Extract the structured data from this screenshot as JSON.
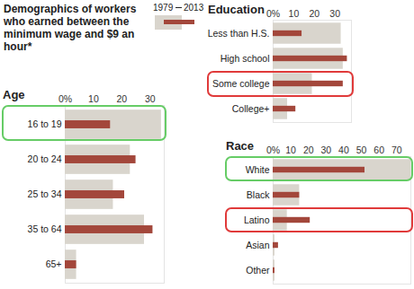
{
  "title": "Demographics of workers who earned between the minimum wage and $9 an hour*",
  "chart_data": [
    {
      "type": "bar",
      "orientation": "horizontal",
      "title": "Age",
      "categories": [
        "16 to 19",
        "20 to 24",
        "25 to 34",
        "35 to 64",
        "65+"
      ],
      "series": [
        {
          "name": "1979",
          "color": "#d9d5cd",
          "values": [
            34,
            23,
            17,
            28,
            4
          ]
        },
        {
          "name": "2013",
          "color": "#a3473b",
          "values": [
            16,
            25,
            21,
            31,
            4
          ]
        }
      ],
      "xlim": [
        0,
        35
      ],
      "xticks": [
        {
          "value": 0,
          "label": "0%"
        },
        10,
        20,
        30
      ]
    },
    {
      "type": "bar",
      "orientation": "horizontal",
      "title": "Education",
      "categories": [
        "Less than H.S.",
        "High school",
        "Some college",
        "College+"
      ],
      "series": [
        {
          "name": "1979",
          "color": "#d9d5cd",
          "values": [
            33,
            34,
            19,
            7
          ]
        },
        {
          "name": "2013",
          "color": "#a3473b",
          "values": [
            14,
            36,
            34,
            11
          ]
        }
      ],
      "xlim": [
        0,
        38
      ],
      "xticks": [
        {
          "value": 0,
          "label": "0%"
        },
        10,
        20,
        30
      ]
    },
    {
      "type": "bar",
      "orientation": "horizontal",
      "title": "Race",
      "categories": [
        "White",
        "Black",
        "Latino",
        "Asian",
        "Other"
      ],
      "series": [
        {
          "name": "1979",
          "color": "#d9d5cd",
          "values": [
            78,
            15,
            8,
            1,
            1
          ]
        },
        {
          "name": "2013",
          "color": "#a3473b",
          "values": [
            52,
            15,
            21,
            3,
            1
          ]
        }
      ],
      "xlim": [
        0,
        78
      ],
      "xticks": [
        {
          "value": 0,
          "label": "0%"
        },
        10,
        20,
        30,
        40,
        50,
        60,
        70
      ]
    }
  ]
}
